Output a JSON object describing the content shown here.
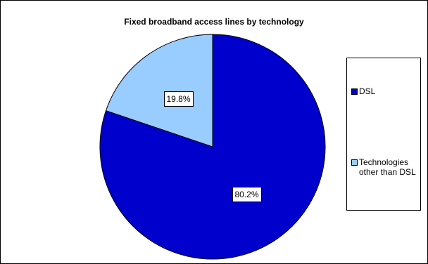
{
  "chart_data": {
    "type": "pie",
    "title": "Fixed broadband access lines by technology",
    "slices": [
      {
        "label": "DSL",
        "value": 80.2,
        "value_label": "80.2%",
        "color": "#0000CC"
      },
      {
        "label": "Technologies other than DSL",
        "value": 19.8,
        "value_label": "19.8%",
        "color": "#99CCFF"
      }
    ],
    "legend_position": "right",
    "start_angle_deg": 0,
    "direction": "clockwise"
  }
}
